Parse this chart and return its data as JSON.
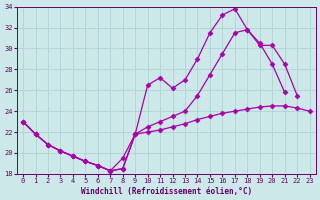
{
  "xlabel": "Windchill (Refroidissement éolien,°C)",
  "xlim": [
    -0.5,
    23.5
  ],
  "ylim": [
    18,
    34
  ],
  "yticks": [
    18,
    20,
    22,
    24,
    26,
    28,
    30,
    32,
    34
  ],
  "xticks": [
    0,
    1,
    2,
    3,
    4,
    5,
    6,
    7,
    8,
    9,
    10,
    11,
    12,
    13,
    14,
    15,
    16,
    17,
    18,
    19,
    20,
    21,
    22,
    23
  ],
  "background_color": "#cce8e8",
  "grid_color": "#aacfcf",
  "line_color": "#aa00aa",
  "line1_y": [
    23.0,
    21.8,
    20.8,
    20.2,
    19.7,
    19.2,
    18.8,
    18.3,
    18.5,
    21.8,
    22.0,
    22.2,
    22.5,
    22.8,
    23.2,
    23.5,
    23.8,
    24.0,
    24.2,
    24.4,
    24.5,
    24.5,
    24.3,
    24.0
  ],
  "line2_y": [
    23.0,
    21.8,
    20.8,
    20.2,
    19.7,
    19.2,
    18.8,
    18.3,
    18.5,
    21.8,
    26.5,
    27.2,
    26.2,
    27.0,
    29.0,
    31.5,
    33.2,
    33.8,
    31.8,
    30.3,
    30.3,
    28.5,
    25.5,
    null
  ],
  "line3_y": [
    23.0,
    21.8,
    20.8,
    20.2,
    19.7,
    19.2,
    18.8,
    18.3,
    19.5,
    21.8,
    22.5,
    23.0,
    23.5,
    24.0,
    25.5,
    27.5,
    29.5,
    31.5,
    31.8,
    30.5,
    28.5,
    25.8,
    null,
    null
  ]
}
